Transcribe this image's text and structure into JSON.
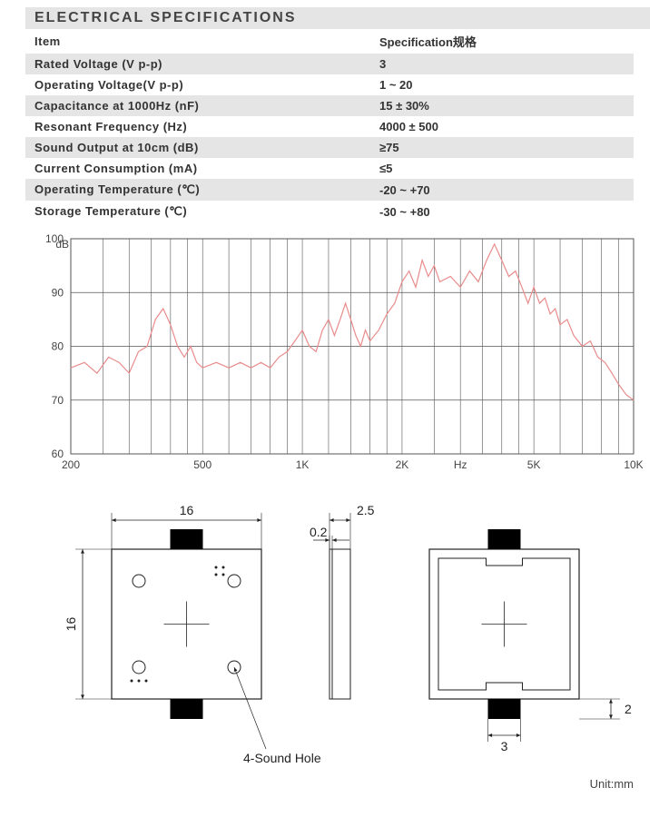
{
  "section_title": "ELECTRICAL SPECIFICATIONS",
  "table": {
    "header": {
      "item": "Item",
      "spec": "Specification规格"
    },
    "rows": [
      {
        "item": "Rated Voltage (V p-p)",
        "spec": "3"
      },
      {
        "item": "Operating Voltage(V p-p)",
        "spec": "1 ~ 20"
      },
      {
        "item": "Capacitance at 1000Hz (nF)",
        "spec": "15 ± 30%"
      },
      {
        "item": "Resonant Frequency (Hz)",
        "spec": "4000 ± 500"
      },
      {
        "item": "Sound Output  at  10cm (dB)",
        "spec": "≥75"
      },
      {
        "item": "Current Consumption (mA)",
        "spec": "≤5"
      },
      {
        "item": "Operating Temperature (℃)",
        "spec": "-20 ~ +70"
      },
      {
        "item": "Storage Temperature (℃)",
        "spec": "-30 ~ +80"
      }
    ],
    "shade_color": "#e5e5e5"
  },
  "chart": {
    "type": "line",
    "y_label": "dB",
    "ylim": [
      60,
      100
    ],
    "yticks": [
      60,
      70,
      80,
      90,
      100
    ],
    "x_scale": "log",
    "xlim": [
      200,
      10000
    ],
    "xticks": [
      {
        "v": 200,
        "l": "200"
      },
      {
        "v": 500,
        "l": "500"
      },
      {
        "v": 1000,
        "l": "1K"
      },
      {
        "v": 2000,
        "l": "2K"
      },
      {
        "v": 3000,
        "l": "Hz"
      },
      {
        "v": 5000,
        "l": "5K"
      },
      {
        "v": 10000,
        "l": "10K"
      }
    ],
    "grid_x_minor": [
      200,
      250,
      300,
      350,
      400,
      450,
      500,
      600,
      700,
      800,
      900,
      1000,
      1200,
      1400,
      1600,
      1800,
      2000,
      2500,
      3000,
      3500,
      4000,
      4500,
      5000,
      6000,
      7000,
      8000,
      9000,
      10000
    ],
    "grid_color": "#555555",
    "background_color": "#ffffff",
    "line_color": "#e98b8b",
    "line_width": 1.2,
    "data": [
      [
        200,
        76
      ],
      [
        220,
        77
      ],
      [
        240,
        75
      ],
      [
        260,
        78
      ],
      [
        280,
        77
      ],
      [
        300,
        75
      ],
      [
        320,
        79
      ],
      [
        340,
        80
      ],
      [
        360,
        85
      ],
      [
        380,
        87
      ],
      [
        400,
        84
      ],
      [
        420,
        80
      ],
      [
        440,
        78
      ],
      [
        460,
        80
      ],
      [
        480,
        77
      ],
      [
        500,
        76
      ],
      [
        550,
        77
      ],
      [
        600,
        76
      ],
      [
        650,
        77
      ],
      [
        700,
        76
      ],
      [
        750,
        77
      ],
      [
        800,
        76
      ],
      [
        850,
        78
      ],
      [
        900,
        79
      ],
      [
        950,
        81
      ],
      [
        1000,
        83
      ],
      [
        1050,
        80
      ],
      [
        1100,
        79
      ],
      [
        1150,
        83
      ],
      [
        1200,
        85
      ],
      [
        1250,
        82
      ],
      [
        1300,
        85
      ],
      [
        1350,
        88
      ],
      [
        1400,
        85
      ],
      [
        1450,
        82
      ],
      [
        1500,
        80
      ],
      [
        1550,
        83
      ],
      [
        1600,
        81
      ],
      [
        1700,
        83
      ],
      [
        1800,
        86
      ],
      [
        1900,
        88
      ],
      [
        2000,
        92
      ],
      [
        2100,
        94
      ],
      [
        2200,
        91
      ],
      [
        2300,
        96
      ],
      [
        2400,
        93
      ],
      [
        2500,
        95
      ],
      [
        2600,
        92
      ],
      [
        2800,
        93
      ],
      [
        3000,
        91
      ],
      [
        3200,
        94
      ],
      [
        3400,
        92
      ],
      [
        3600,
        96
      ],
      [
        3800,
        99
      ],
      [
        4000,
        96
      ],
      [
        4200,
        93
      ],
      [
        4400,
        94
      ],
      [
        4600,
        91
      ],
      [
        4800,
        88
      ],
      [
        5000,
        91
      ],
      [
        5200,
        88
      ],
      [
        5400,
        89
      ],
      [
        5600,
        86
      ],
      [
        5800,
        87
      ],
      [
        6000,
        84
      ],
      [
        6300,
        85
      ],
      [
        6600,
        82
      ],
      [
        7000,
        80
      ],
      [
        7400,
        81
      ],
      [
        7800,
        78
      ],
      [
        8200,
        77
      ],
      [
        8600,
        75
      ],
      [
        9000,
        73
      ],
      [
        9500,
        71
      ],
      [
        10000,
        70
      ]
    ]
  },
  "mech": {
    "unit_label": "Unit:mm",
    "sound_hole_label": "4-Sound Hole",
    "dims": {
      "width": "16",
      "height": "16",
      "thickness": "2.5",
      "plate": "0.2",
      "pad_w": "3",
      "pad_gap": "2"
    },
    "stroke_color": "#222222",
    "fill_pad": "#000000",
    "font_size": 14
  }
}
